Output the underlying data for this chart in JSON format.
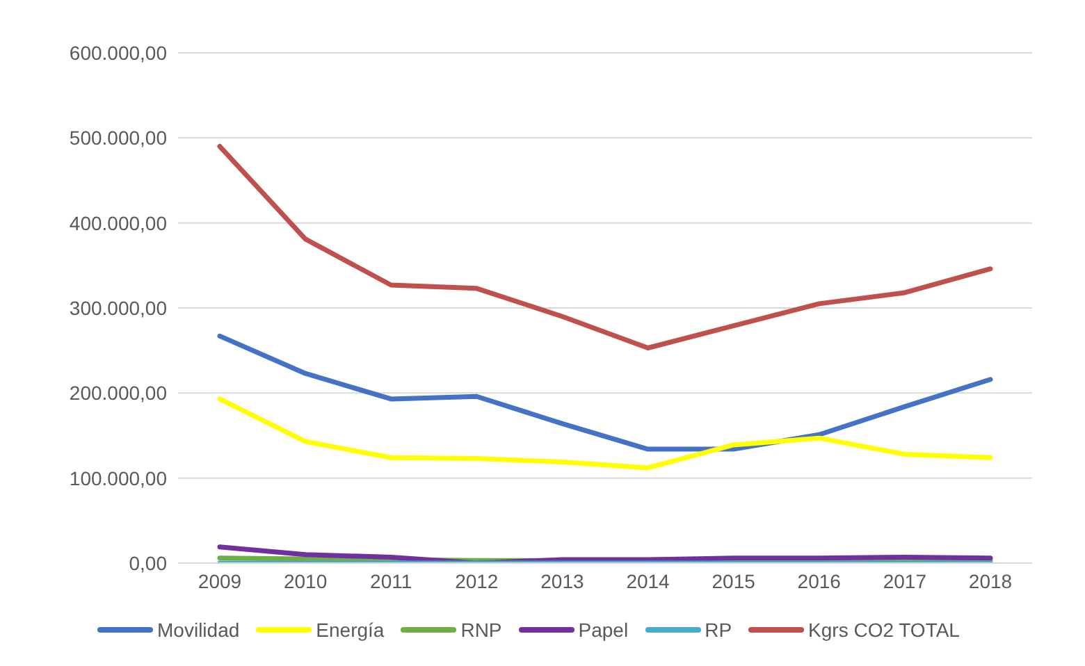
{
  "chart_data": {
    "type": "line",
    "categories": [
      "2009",
      "2010",
      "2011",
      "2012",
      "2013",
      "2014",
      "2015",
      "2016",
      "2017",
      "2018"
    ],
    "series": [
      {
        "name": "Movilidad",
        "color": "#4472c4",
        "values": [
          267000,
          223000,
          193000,
          196000,
          164000,
          134000,
          134000,
          151000,
          184000,
          216000
        ]
      },
      {
        "name": "Energía",
        "color": "#ffff00",
        "values": [
          193000,
          143000,
          124000,
          123000,
          119000,
          112000,
          139000,
          147000,
          128000,
          124000
        ]
      },
      {
        "name": "RNP",
        "color": "#70ad47",
        "values": [
          6000,
          5000,
          4000,
          3000,
          3000,
          3000,
          3000,
          3000,
          3000,
          3000
        ]
      },
      {
        "name": "Papel",
        "color": "#7030a0",
        "values": [
          19000,
          10000,
          7000,
          0,
          4000,
          4000,
          6000,
          6000,
          7000,
          6000
        ]
      },
      {
        "name": "RP",
        "color": "#4bacc6",
        "values": [
          0,
          0,
          0,
          0,
          0,
          0,
          0,
          0,
          0,
          0
        ]
      },
      {
        "name": "Kgrs CO2 TOTAL",
        "color": "#c0504d",
        "values": [
          490000,
          381000,
          327000,
          323000,
          290000,
          253000,
          279000,
          305000,
          318000,
          346000
        ]
      }
    ],
    "ylim": [
      0,
      600000
    ],
    "yticks": [
      {
        "value": 0,
        "label": "0,00"
      },
      {
        "value": 100000,
        "label": "100.000,00"
      },
      {
        "value": 200000,
        "label": "200.000,00"
      },
      {
        "value": 300000,
        "label": "300.000,00"
      },
      {
        "value": 400000,
        "label": "400.000,00"
      },
      {
        "value": 500000,
        "label": "500.000,00"
      },
      {
        "value": 600000,
        "label": "600.000,00"
      }
    ],
    "grid": "y",
    "legend": "bottom",
    "marker": "none",
    "line_style": "solid"
  }
}
